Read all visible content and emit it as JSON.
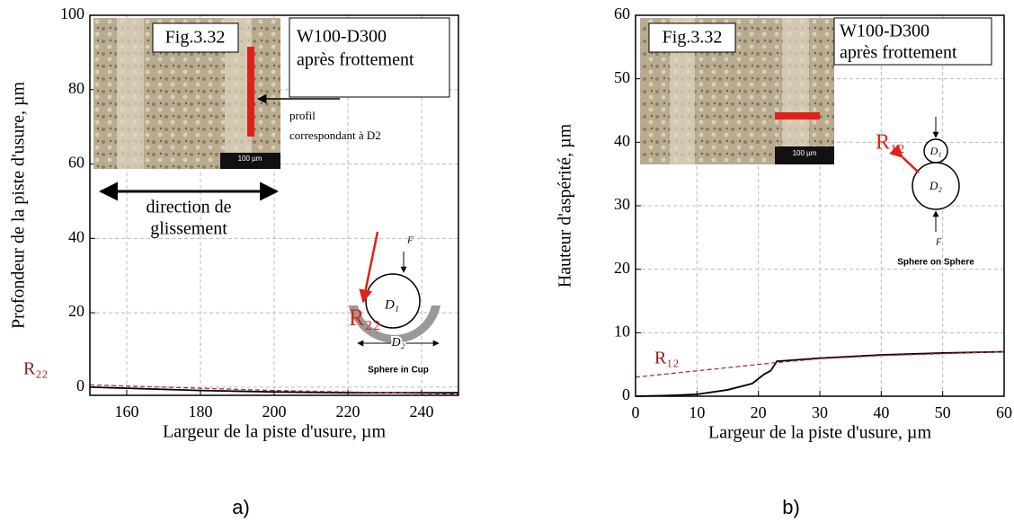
{
  "chart_data": [
    {
      "type": "line",
      "panel_label": "a)",
      "xlabel": "Largeur de la piste d'usure, µm",
      "ylabel": "Profondeur de la piste d'usure, µm",
      "xlim": [
        150,
        250
      ],
      "ylim": [
        -2.2,
        100
      ],
      "xticks": [
        160,
        180,
        200,
        220,
        240
      ],
      "yticks": [
        0,
        20,
        40,
        60,
        80,
        100
      ],
      "grid": true,
      "x": [
        150,
        160,
        170,
        180,
        190,
        200,
        210,
        220,
        230,
        240,
        250
      ],
      "series": [
        {
          "color": "#000000",
          "values": [
            0,
            -0.3,
            -0.6,
            -0.9,
            -1.1,
            -1.3,
            -1.4,
            -1.5,
            -1.5,
            -1.5,
            -1.5
          ]
        },
        {
          "color": "#b03030",
          "dashed": true,
          "values": [
            0.6,
            0.3,
            0,
            -0.3,
            -0.6,
            -0.9,
            -1.1,
            -1.3,
            -1.5,
            -1.7,
            -1.9
          ]
        }
      ],
      "inset_texts": [
        "Fig.3.32",
        "W100-D300",
        "après frottement",
        "profil",
        "correspondant à D2",
        "100 µm"
      ],
      "annotations": [
        "direction de",
        "glissement",
        "R₂₂",
        "F",
        "D₁",
        "D₂",
        "Sphere in Cup",
        "R₂₂"
      ]
    },
    {
      "type": "line",
      "panel_label": "b)",
      "xlabel": "Largeur de la piste d'usure, µm",
      "ylabel": "Hauteur d'aspérité, µm",
      "xlim": [
        0,
        60
      ],
      "ylim": [
        0,
        60
      ],
      "xticks": [
        0,
        10,
        20,
        30,
        40,
        50,
        60
      ],
      "yticks": [
        0,
        10,
        20,
        30,
        40,
        50,
        60
      ],
      "grid": true,
      "x": [
        0,
        5,
        10,
        15,
        19,
        21,
        22,
        23,
        30,
        40,
        50,
        60
      ],
      "series": [
        {
          "color": "#000000",
          "values": [
            0,
            0.1,
            0.3,
            1,
            2,
            3.5,
            4,
            5.5,
            6,
            6.5,
            6.8,
            7
          ]
        },
        {
          "color": "#b03030",
          "dashed": true,
          "values": [
            3,
            3.5,
            4,
            4.5,
            4.9,
            5.1,
            5.2,
            5.3,
            5.9,
            6.4,
            6.7,
            7
          ]
        }
      ],
      "inset_texts": [
        "Fig.3.32",
        "W100-D300",
        "après frottement",
        "100 µm"
      ],
      "annotations": [
        "R₁₂",
        "D₁",
        "D₂",
        "F",
        "Sphere on Sphere",
        "R₁₂"
      ]
    }
  ]
}
